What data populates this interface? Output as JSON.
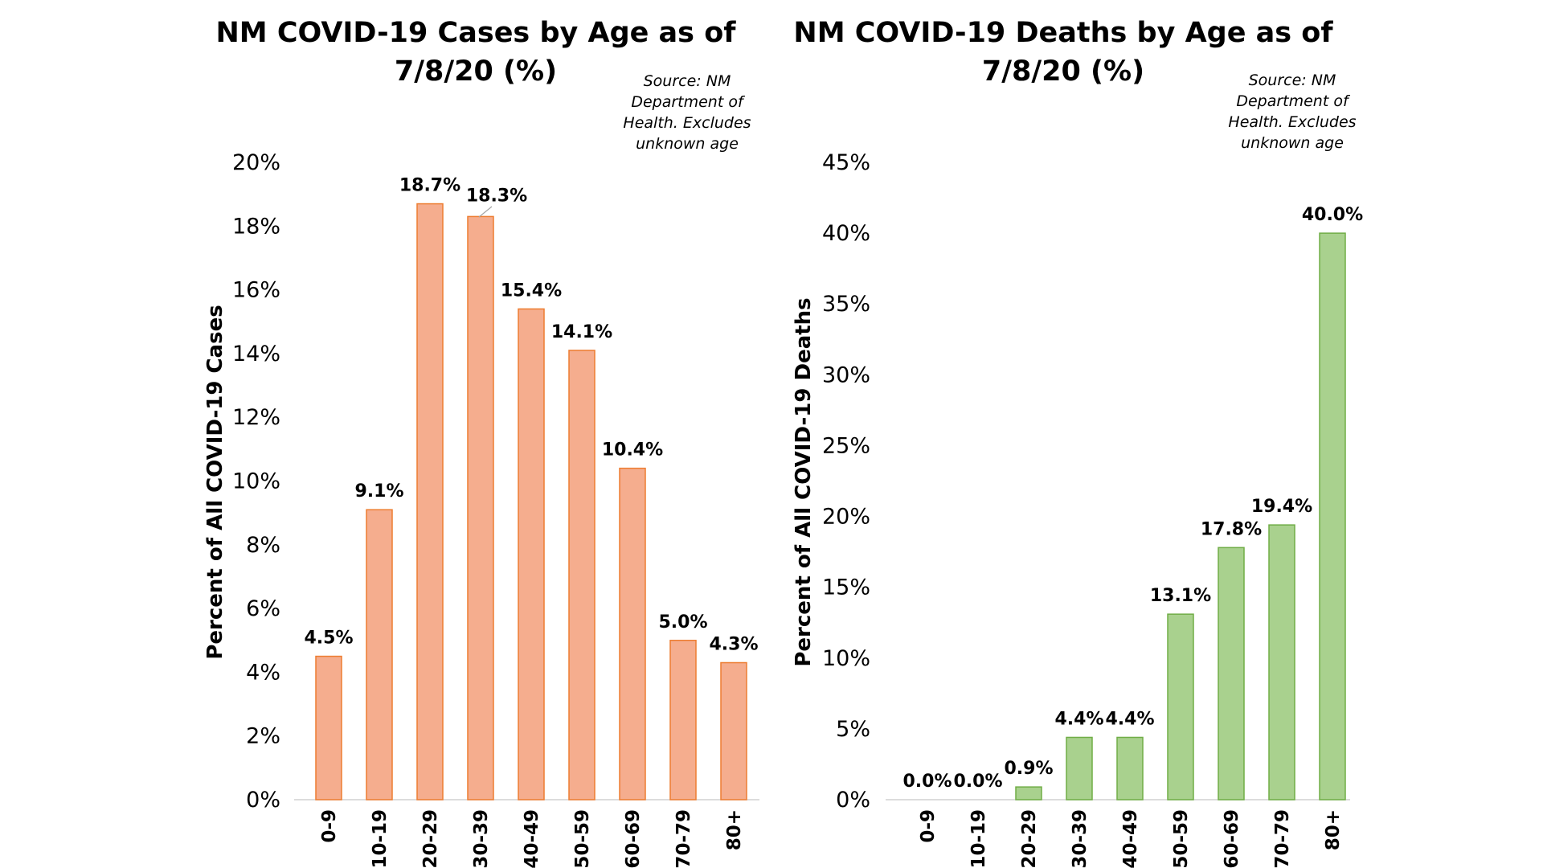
{
  "chart_data": [
    {
      "type": "bar",
      "title_line1": "NM COVID-19 Cases by Age as of",
      "title_line2": "7/8/20 (%)",
      "note": [
        "Source: NM",
        "Department of",
        "Health. Excludes",
        "unknown age"
      ],
      "ylabel": "Percent of All COVID-19 Cases",
      "xlabel": "",
      "categories": [
        "0-9",
        "10-19",
        "20-29",
        "30-39",
        "40-49",
        "50-59",
        "60-69",
        "70-79",
        "80+"
      ],
      "values": [
        4.5,
        9.1,
        18.7,
        18.3,
        15.4,
        14.1,
        10.4,
        5.0,
        4.3
      ],
      "value_labels": [
        "4.5%",
        "9.1%",
        "18.7%",
        "18.3%",
        "15.4%",
        "14.1%",
        "10.4%",
        "5.0%",
        "4.3%"
      ],
      "yticks": [
        0,
        2,
        4,
        6,
        8,
        10,
        12,
        14,
        16,
        18,
        20
      ],
      "ytick_labels": [
        "0%",
        "2%",
        "4%",
        "6%",
        "8%",
        "10%",
        "12%",
        "14%",
        "16%",
        "18%",
        "20%"
      ],
      "ylim": [
        0,
        20
      ],
      "grid": false,
      "bar_fill": "#f5ad8e",
      "bar_stroke": "#ed7d31"
    },
    {
      "type": "bar",
      "title_line1": "NM COVID-19 Deaths by Age as of",
      "title_line2": "7/8/20 (%)",
      "note": [
        "Source: NM",
        "Department of",
        "Health. Excludes",
        "unknown age"
      ],
      "ylabel": "Percent of All COVID-19 Deaths",
      "xlabel": "",
      "categories": [
        "0-9",
        "10-19",
        "20-29",
        "30-39",
        "40-49",
        "50-59",
        "60-69",
        "70-79",
        "80+"
      ],
      "values": [
        0.0,
        0.0,
        0.9,
        4.4,
        4.4,
        13.1,
        17.8,
        19.4,
        40.0
      ],
      "value_labels": [
        "0.0%",
        "0.0%",
        "0.9%",
        "4.4%",
        "4.4%",
        "13.1%",
        "17.8%",
        "19.4%",
        "40.0%"
      ],
      "yticks": [
        0,
        5,
        10,
        15,
        20,
        25,
        30,
        35,
        40,
        45
      ],
      "ytick_labels": [
        "0%",
        "5%",
        "10%",
        "15%",
        "20%",
        "25%",
        "30%",
        "35%",
        "40%",
        "45%"
      ],
      "ylim": [
        0,
        45
      ],
      "grid": false,
      "bar_fill": "#a9d18e",
      "bar_stroke": "#70ad47"
    }
  ]
}
